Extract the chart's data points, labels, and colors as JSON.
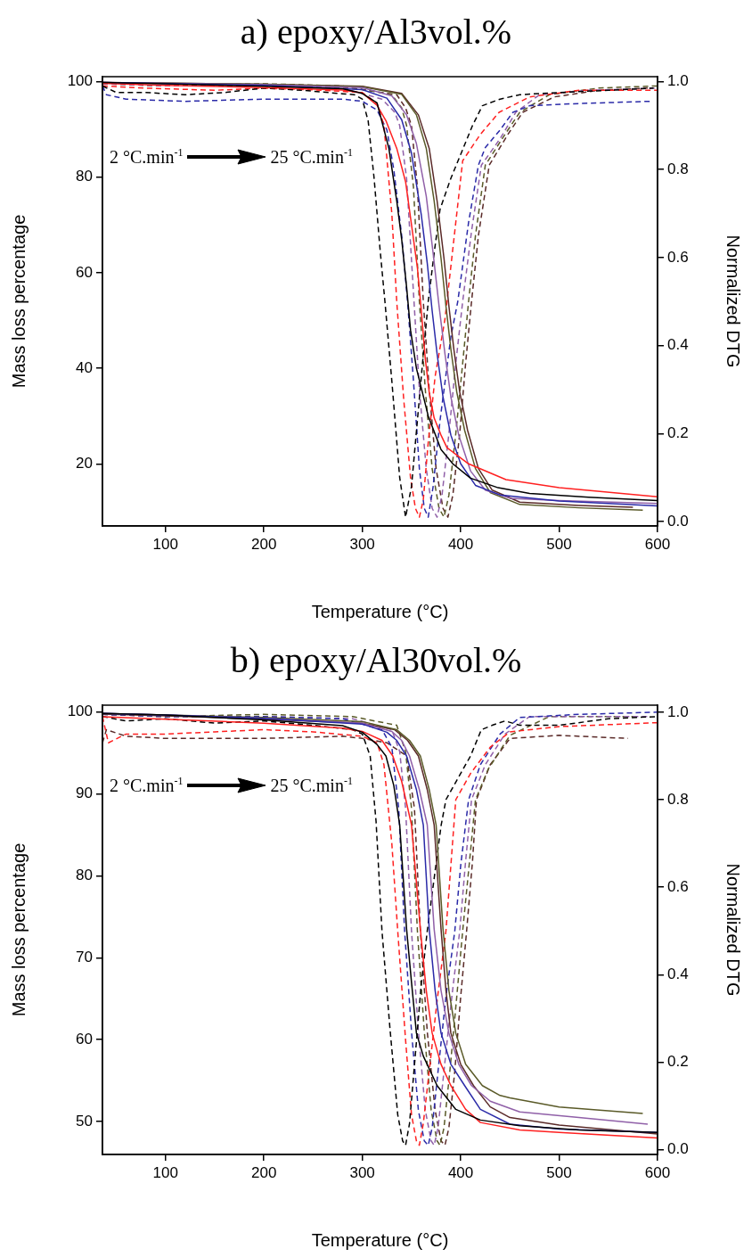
{
  "chart_data": [
    {
      "type": "line",
      "title": "a) epoxy/Al3vol.%",
      "xlabel": "Temperature (°C)",
      "ylabel": "Mass loss percentage",
      "y2label": "Normalized DTG",
      "annotations": [
        "2 °C.min$^{-1}$",
        "25 °C.min$^{-1}$"
      ],
      "xlim": [
        36,
        600
      ],
      "xticks": [
        100,
        200,
        300,
        400,
        500,
        600
      ],
      "ylim": [
        7,
        101
      ],
      "yticks": [
        20,
        40,
        60,
        80,
        100
      ],
      "y2lim": [
        -0.01,
        1.011
      ],
      "y2ticks": [
        {
          "value": 0,
          "label": "0.0"
        },
        {
          "value": 0.2,
          "label": "0.2"
        },
        {
          "value": 0.4,
          "label": "0.4"
        },
        {
          "value": 0.6,
          "label": "0.6"
        },
        {
          "value": 0.8,
          "label": "0.8"
        },
        {
          "value": 1,
          "label": "1.0"
        }
      ],
      "series": [
        {
          "color": "#000000",
          "x": [
            36,
            100,
            200,
            280,
            300,
            315,
            327,
            335,
            340,
            345,
            349,
            355,
            367,
            380,
            392,
            410,
            438,
            470,
            530,
            600
          ],
          "values": [
            99.8,
            99.5,
            99,
            98.5,
            97.5,
            95.5,
            86,
            75,
            67,
            57,
            48,
            40,
            30,
            23,
            20,
            17,
            15,
            13.8,
            13,
            12.3
          ]
        },
        {
          "color": "#ff2020",
          "x": [
            36,
            100,
            200,
            280,
            300,
            315,
            324,
            335,
            344,
            350,
            356,
            360,
            364,
            368,
            373,
            380,
            386,
            395,
            408,
            446,
            500,
            600
          ],
          "values": [
            99.6,
            99.2,
            98.7,
            98.2,
            97.6,
            95,
            91.8,
            86,
            79,
            70,
            61,
            52,
            42,
            35,
            29.6,
            26,
            23.4,
            22,
            20,
            16.7,
            15,
            13.1
          ]
        },
        {
          "color": "#2a2aa8",
          "x": [
            36,
            200,
            300,
            325,
            340,
            350,
            360,
            366,
            371,
            376,
            382,
            390,
            400,
            415,
            440,
            500,
            600
          ],
          "values": [
            99.8,
            99.2,
            98.3,
            96.5,
            92,
            85,
            72,
            62,
            52,
            43,
            34,
            26,
            20,
            15.5,
            13.5,
            12.2,
            11.2
          ]
        },
        {
          "color": "#9060a8",
          "x": [
            36,
            200,
            300,
            330,
            345,
            355,
            365,
            372,
            378,
            384,
            390,
            398,
            410,
            425,
            450,
            500,
            600
          ],
          "values": [
            99.8,
            99.3,
            98.7,
            97,
            93,
            87,
            76,
            64,
            53,
            43,
            34,
            26,
            18.5,
            14.5,
            12.8,
            12.3,
            11.7
          ]
        },
        {
          "color": "#5a5a28",
          "x": [
            36,
            200,
            300,
            340,
            355,
            365,
            373,
            380,
            385,
            390,
            396,
            404,
            415,
            430,
            460,
            520,
            585
          ],
          "values": [
            99.8,
            99.4,
            98.9,
            97.3,
            93,
            86,
            75,
            63,
            53,
            44,
            35,
            27,
            19,
            14,
            11.5,
            10.8,
            10.3
          ]
        },
        {
          "color": "#5a2a28",
          "x": [
            36,
            200,
            300,
            340,
            357,
            368,
            376,
            383,
            388,
            393,
            399,
            407,
            418,
            432,
            460,
            520,
            575
          ],
          "values": [
            99.8,
            99.4,
            99,
            97.5,
            93,
            86,
            75,
            63,
            53,
            44,
            35,
            27,
            19,
            14.5,
            12,
            11.3,
            10.9
          ]
        },
        {
          "color": "#000000",
          "axis": "y2",
          "line_style": "dashed",
          "x": [
            36,
            50,
            80,
            120,
            160,
            200,
            240,
            280,
            292,
            300,
            306,
            312,
            318,
            323,
            330,
            338,
            344,
            350,
            356,
            362,
            367,
            373,
            379,
            390,
            401,
            412,
            422,
            440,
            460,
            500,
            550,
            596
          ],
          "values": [
            0.99,
            0.975,
            0.975,
            0.97,
            0.975,
            0.985,
            0.98,
            0.972,
            0.97,
            0.96,
            0.91,
            0.78,
            0.62,
            0.5,
            0.32,
            0.1,
            0.01,
            0.08,
            0.23,
            0.38,
            0.5,
            0.61,
            0.71,
            0.78,
            0.84,
            0.9,
            0.945,
            0.96,
            0.97,
            0.975,
            0.98,
            0.985
          ]
        },
        {
          "color": "#ff2020",
          "axis": "y2",
          "line_style": "dashed",
          "x": [
            36,
            80,
            150,
            200,
            260,
            300,
            315,
            322,
            330,
            335,
            342,
            349,
            354,
            358,
            362,
            367,
            374,
            384,
            395,
            402,
            420,
            439,
            470,
            520,
            600
          ],
          "values": [
            0.99,
            0.985,
            0.98,
            0.985,
            0.98,
            0.975,
            0.95,
            0.9,
            0.7,
            0.5,
            0.28,
            0.1,
            0.03,
            0.01,
            0.05,
            0.18,
            0.33,
            0.46,
            0.68,
            0.82,
            0.88,
            0.93,
            0.965,
            0.98,
            0.98
          ]
        },
        {
          "color": "#2a2aa8",
          "axis": "y2",
          "line_style": "dashed",
          "x": [
            36,
            40,
            60,
            120,
            200,
            280,
            300,
            315,
            325,
            332,
            340,
            346,
            352,
            358,
            363,
            367,
            372,
            379,
            390,
            397,
            408,
            418,
            425,
            440,
            453,
            470,
            520,
            592
          ],
          "values": [
            0.99,
            0.97,
            0.96,
            0.955,
            0.96,
            0.96,
            0.955,
            0.935,
            0.89,
            0.8,
            0.65,
            0.5,
            0.32,
            0.12,
            0.03,
            0.01,
            0.08,
            0.23,
            0.42,
            0.5,
            0.68,
            0.81,
            0.85,
            0.89,
            0.93,
            0.945,
            0.95,
            0.955
          ]
        },
        {
          "color": "#9060a8",
          "axis": "y2",
          "line_style": "dashed",
          "x": [
            36,
            100,
            200,
            280,
            320,
            333,
            338,
            345,
            352,
            358,
            365,
            371,
            376,
            381,
            388,
            395,
            402,
            411,
            421,
            440,
            456,
            480,
            530,
            600
          ],
          "values": [
            0.995,
            0.99,
            0.99,
            0.985,
            0.96,
            0.93,
            0.9,
            0.78,
            0.52,
            0.3,
            0.12,
            0.03,
            0.01,
            0.06,
            0.2,
            0.36,
            0.5,
            0.66,
            0.81,
            0.87,
            0.93,
            0.97,
            0.98,
            0.985
          ]
        },
        {
          "color": "#5a5a28",
          "axis": "y2",
          "line_style": "dashed",
          "x": [
            36,
            100,
            200,
            280,
            330,
            340,
            345,
            352,
            358,
            364,
            371,
            378,
            383,
            388,
            395,
            402,
            408,
            415,
            425,
            445,
            460,
            490,
            540,
            600
          ],
          "values": [
            0.995,
            0.99,
            0.995,
            0.99,
            0.97,
            0.94,
            0.9,
            0.76,
            0.5,
            0.3,
            0.12,
            0.03,
            0.01,
            0.06,
            0.2,
            0.36,
            0.5,
            0.65,
            0.81,
            0.88,
            0.93,
            0.97,
            0.985,
            0.99
          ]
        },
        {
          "color": "#5a2a28",
          "axis": "y2",
          "line_style": "dashed",
          "x": [
            36,
            100,
            200,
            290,
            335,
            344,
            350,
            356,
            362,
            368,
            375,
            382,
            387,
            392,
            399,
            405,
            411,
            418,
            429,
            448,
            463,
            495,
            540,
            590
          ],
          "values": [
            0.995,
            0.99,
            0.99,
            0.985,
            0.97,
            0.94,
            0.9,
            0.76,
            0.5,
            0.3,
            0.12,
            0.03,
            0.01,
            0.06,
            0.2,
            0.36,
            0.5,
            0.65,
            0.81,
            0.88,
            0.93,
            0.965,
            0.98,
            0.985
          ]
        }
      ]
    },
    {
      "type": "line",
      "title": "b) epoxy/Al30vol.%",
      "xlabel": "Temperature (°C)",
      "ylabel": "Mass loss percentage",
      "y2label": "Normalized DTG",
      "annotations": [
        "2 °C.min$^{-1}$",
        "25 °C.min$^{-1}$"
      ],
      "xlim": [
        36,
        600
      ],
      "xticks": [
        100,
        200,
        300,
        400,
        500,
        600
      ],
      "ylim": [
        46,
        100.8
      ],
      "yticks": [
        50,
        60,
        70,
        80,
        90,
        100
      ],
      "y2lim": [
        -0.011,
        1.016
      ],
      "y2ticks": [
        {
          "value": 0,
          "label": "0.0"
        },
        {
          "value": 0.2,
          "label": "0.2"
        },
        {
          "value": 0.4,
          "label": "0.4"
        },
        {
          "value": 0.6,
          "label": "0.6"
        },
        {
          "value": 0.8,
          "label": "0.8"
        },
        {
          "value": 1,
          "label": "1.0"
        }
      ],
      "series": [
        {
          "color": "#000000",
          "x": [
            36,
            100,
            200,
            280,
            300,
            315,
            324,
            332,
            338,
            345,
            350,
            355,
            362,
            376,
            395,
            420,
            460,
            520,
            600
          ],
          "values": [
            99.8,
            99.6,
            99,
            98.3,
            97.5,
            96,
            94.6,
            91,
            86.2,
            73.5,
            67,
            60.8,
            58,
            54.4,
            51.5,
            50.2,
            49.5,
            49,
            48.7
          ]
        },
        {
          "color": "#ff2020",
          "x": [
            36,
            100,
            200,
            280,
            300,
            320,
            331,
            340,
            350,
            359,
            365,
            371,
            380,
            390,
            405,
            420,
            460,
            500,
            600
          ],
          "values": [
            99.4,
            99.1,
            98.6,
            98,
            97.6,
            96.5,
            94.6,
            91.5,
            86.2,
            73.5,
            66,
            60.8,
            57,
            54.4,
            51.5,
            49.9,
            49,
            48.7,
            48
          ]
        },
        {
          "color": "#2a2aa8",
          "x": [
            36,
            100,
            200,
            300,
            325,
            335,
            345,
            355,
            362,
            368,
            374,
            380,
            390,
            404,
            420,
            450,
            500,
            600
          ],
          "values": [
            99.8,
            99.6,
            99.2,
            98.5,
            97.5,
            96.5,
            94.6,
            90.5,
            86.2,
            73.5,
            66,
            60.8,
            57,
            54.4,
            51.5,
            49.7,
            49.1,
            48.7
          ]
        },
        {
          "color": "#9060a8",
          "x": [
            36,
            100,
            200,
            300,
            330,
            340,
            348,
            358,
            366,
            373,
            380,
            388,
            398,
            411,
            430,
            460,
            520,
            590
          ],
          "values": [
            99.8,
            99.6,
            99.2,
            98.6,
            97.6,
            96.5,
            94.6,
            90.5,
            86.2,
            73.5,
            66,
            60.8,
            57,
            54.4,
            52.5,
            51.2,
            50.5,
            49.7
          ]
        },
        {
          "color": "#5a5a28",
          "x": [
            36,
            100,
            200,
            300,
            335,
            348,
            359,
            368,
            375,
            382,
            388,
            395,
            405,
            422,
            440,
            450,
            500,
            585
          ],
          "values": [
            99.8,
            99.6,
            99.3,
            98.8,
            97.8,
            96.5,
            94.6,
            90.5,
            86.2,
            73.5,
            66,
            60.8,
            57,
            54.4,
            53.2,
            52.9,
            51.8,
            51
          ]
        },
        {
          "color": "#5a2a28",
          "x": [
            36,
            100,
            200,
            300,
            333,
            346,
            357,
            366,
            373,
            380,
            385,
            390,
            400,
            413,
            430,
            450,
            500,
            600
          ],
          "values": [
            99.7,
            99.5,
            99.1,
            98.6,
            97.8,
            96.5,
            94.6,
            90.5,
            86.2,
            73.5,
            66,
            60.8,
            57,
            54.4,
            51.8,
            50.5,
            49.6,
            48.5
          ]
        },
        {
          "color": "#000000",
          "axis": "y2",
          "line_style": "dashed",
          "x": [
            36,
            60,
            100,
            150,
            200,
            250,
            290,
            300,
            308,
            314,
            320,
            328,
            336,
            341,
            344,
            348,
            354,
            360,
            366,
            373,
            380,
            385,
            395,
            410,
            421,
            432,
            445,
            460,
            500,
            550,
            600
          ],
          "values": [
            0.99,
            0.98,
            0.985,
            0.975,
            0.98,
            0.97,
            0.96,
            0.95,
            0.9,
            0.75,
            0.5,
            0.28,
            0.08,
            0.02,
            0.01,
            0.06,
            0.22,
            0.38,
            0.5,
            0.62,
            0.74,
            0.8,
            0.84,
            0.9,
            0.96,
            0.97,
            0.98,
            0.97,
            0.97,
            0.985,
            0.99
          ]
        },
        {
          "color": "#ff2020",
          "axis": "y2",
          "line_style": "dashed",
          "x": [
            36,
            42,
            60,
            100,
            150,
            200,
            250,
            300,
            315,
            322,
            330,
            336,
            344,
            350,
            355,
            358,
            362,
            368,
            376,
            385,
            395,
            410,
            430,
            450,
            500,
            600
          ],
          "values": [
            0.99,
            0.93,
            0.95,
            0.95,
            0.955,
            0.96,
            0.955,
            0.945,
            0.93,
            0.88,
            0.7,
            0.5,
            0.25,
            0.08,
            0.02,
            0.01,
            0.06,
            0.18,
            0.34,
            0.5,
            0.8,
            0.86,
            0.92,
            0.955,
            0.967,
            0.976
          ]
        },
        {
          "color": "#2a2aa8",
          "axis": "y2",
          "line_style": "dashed",
          "x": [
            36,
            100,
            200,
            280,
            320,
            330,
            337,
            343,
            350,
            357,
            363,
            367,
            371,
            377,
            385,
            394,
            400,
            408,
            420,
            440,
            460,
            520,
            600
          ],
          "values": [
            0.995,
            0.99,
            0.99,
            0.985,
            0.96,
            0.92,
            0.78,
            0.5,
            0.27,
            0.09,
            0.02,
            0.01,
            0.05,
            0.18,
            0.35,
            0.5,
            0.65,
            0.8,
            0.88,
            0.95,
            0.988,
            0.995,
            1
          ]
        },
        {
          "color": "#9060a8",
          "axis": "y2",
          "line_style": "dashed",
          "x": [
            36,
            100,
            200,
            290,
            330,
            338,
            344,
            350,
            357,
            364,
            370,
            373,
            377,
            383,
            391,
            399,
            405,
            411,
            425,
            445,
            470,
            590
          ],
          "values": [
            0.995,
            0.99,
            0.99,
            0.985,
            0.96,
            0.91,
            0.78,
            0.5,
            0.27,
            0.09,
            0.02,
            0.01,
            0.05,
            0.18,
            0.35,
            0.5,
            0.66,
            0.8,
            0.88,
            0.95,
            0.99,
            0.99
          ]
        },
        {
          "color": "#5a5a28",
          "axis": "y2",
          "line_style": "dashed",
          "x": [
            36,
            100,
            200,
            290,
            335,
            344,
            350,
            356,
            363,
            370,
            376,
            379,
            383,
            389,
            396,
            402,
            409,
            415,
            428,
            450,
            490,
            580
          ],
          "values": [
            0.995,
            0.99,
            0.995,
            0.99,
            0.97,
            0.91,
            0.78,
            0.5,
            0.27,
            0.09,
            0.02,
            0.01,
            0.05,
            0.18,
            0.35,
            0.5,
            0.66,
            0.8,
            0.87,
            0.947,
            0.99,
            0.99
          ]
        },
        {
          "color": "#5a2a28",
          "axis": "y2",
          "line_style": "dashed",
          "x": [
            36,
            40,
            60,
            100,
            200,
            280,
            300,
            325,
            345,
            353,
            359,
            366,
            374,
            380,
            384,
            388,
            394,
            400,
            406,
            412,
            416,
            430,
            450,
            500,
            570
          ],
          "values": [
            0.93,
            0.96,
            0.945,
            0.94,
            0.94,
            0.945,
            0.94,
            0.93,
            0.9,
            0.78,
            0.5,
            0.27,
            0.09,
            0.02,
            0.01,
            0.05,
            0.18,
            0.35,
            0.5,
            0.66,
            0.8,
            0.88,
            0.94,
            0.947,
            0.94
          ]
        }
      ]
    }
  ]
}
